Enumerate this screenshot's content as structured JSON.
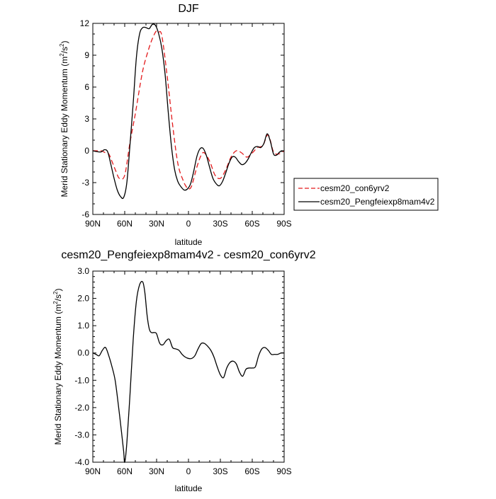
{
  "chart_data": [
    {
      "id": "top",
      "type": "line",
      "title": "DJF",
      "xlabel": "latitude",
      "ylabel": "Merid Stationary Eddy Momentum (m",
      "ylabel_sup": "2",
      "ylabel_mid": "/s",
      "ylabel_sup2": "2",
      "ylabel_end": ")",
      "xlim": [
        90,
        -90
      ],
      "ylim": [
        -6,
        12
      ],
      "xtick_values": [
        90,
        60,
        30,
        0,
        -30,
        -60,
        -90
      ],
      "xtick_labels": [
        "90N",
        "60N",
        "30N",
        "0",
        "30S",
        "60S",
        "90S"
      ],
      "ytick_values": [
        -6,
        -3,
        0,
        3,
        6,
        9,
        12
      ],
      "ytick_labels": [
        "-6",
        "-3",
        "0",
        "3",
        "6",
        "9",
        "12"
      ],
      "series": [
        {
          "name": "cesm20_con6yrv2",
          "color": "#e31a1c",
          "dash": "dashed",
          "x": [
            90,
            85,
            82,
            78,
            75,
            72,
            68,
            65,
            60,
            55,
            50,
            45,
            42,
            38,
            35,
            32,
            30,
            28,
            25,
            20,
            15,
            10,
            5,
            2,
            0,
            -3,
            -8,
            -12,
            -15,
            -20,
            -25,
            -30,
            -35,
            -40,
            -45,
            -50,
            -55,
            -60,
            -65,
            -70,
            -75,
            -80,
            -85,
            -90
          ],
          "y": [
            0,
            0,
            0,
            -0.2,
            -0.3,
            -1.0,
            -2.0,
            -2.6,
            -2.3,
            0.8,
            3.5,
            6.5,
            8.0,
            9.4,
            10.3,
            11.0,
            11.3,
            11.2,
            10.8,
            7.0,
            2.5,
            -1.2,
            -2.8,
            -3.4,
            -3.6,
            -3.3,
            -1.5,
            -0.4,
            -0.2,
            -1.0,
            -2.3,
            -2.6,
            -1.8,
            -0.6,
            0,
            -0.2,
            -0.6,
            -0.2,
            0.3,
            0.5,
            1.5,
            -0.1,
            -0.3,
            0
          ]
        },
        {
          "name": "cesm20_Pengfeiexp8mam4v2",
          "color": "#000000",
          "dash": "solid",
          "x": [
            90,
            85,
            82,
            79,
            76,
            73,
            70,
            67,
            64,
            61,
            58,
            55,
            52,
            49,
            46,
            43,
            40,
            37,
            34,
            31,
            28,
            25,
            22,
            19,
            16,
            13,
            10,
            7,
            4,
            1,
            -2,
            -5,
            -8,
            -11,
            -14,
            -17,
            -20,
            -23,
            -26,
            -29,
            -32,
            -35,
            -38,
            -41,
            -44,
            -47,
            -50,
            -53,
            -56,
            -59,
            -62,
            -65,
            -68,
            -71,
            -74,
            -77,
            -80,
            -83,
            -86,
            -90
          ],
          "y": [
            0,
            -0.1,
            -0.1,
            0.1,
            -0.1,
            -1.3,
            -2.6,
            -3.7,
            -4.3,
            -4.4,
            -3.0,
            0.6,
            4.5,
            8.8,
            11.0,
            11.6,
            11.6,
            11.5,
            11.9,
            11.8,
            11.0,
            9.6,
            7.2,
            3.6,
            0.4,
            -1.8,
            -2.9,
            -3.4,
            -3.7,
            -3.6,
            -3.1,
            -1.9,
            -0.5,
            0.2,
            0.2,
            -0.5,
            -1.6,
            -2.6,
            -3.1,
            -3.3,
            -2.9,
            -2.1,
            -1.2,
            -0.6,
            -0.6,
            -1.0,
            -1.3,
            -1.2,
            -0.8,
            -0.2,
            0.3,
            0.4,
            0.3,
            0.7,
            1.6,
            0.9,
            -0.3,
            -0.4,
            -0.1,
            0
          ]
        }
      ],
      "legend": [
        "cesm20_con6yrv2",
        "cesm20_Pengfeiexp8mam4v2"
      ]
    },
    {
      "id": "bottom",
      "type": "line",
      "title": "cesm20_Pengfeiexp8mam4v2 - cesm20_con6yrv2",
      "xlabel": "latitude",
      "ylabel": "Merid Stationary Eddy Momentum (m",
      "ylabel_sup": "2",
      "ylabel_mid": "/s",
      "ylabel_sup2": "2",
      "ylabel_end": ")",
      "xlim": [
        90,
        -90
      ],
      "ylim": [
        -4,
        3
      ],
      "xtick_values": [
        90,
        60,
        30,
        0,
        -30,
        -60,
        -90
      ],
      "xtick_labels": [
        "90N",
        "60N",
        "30N",
        "0",
        "30S",
        "60S",
        "90S"
      ],
      "ytick_values": [
        -4,
        -3,
        -2,
        -1,
        0,
        1,
        2,
        3
      ],
      "ytick_labels": [
        "-4.0",
        "-3.0",
        "-2.0",
        "-1.0",
        "0.0",
        "1.0",
        "2.0",
        "3.0"
      ],
      "series": [
        {
          "name": "difference",
          "color": "#000000",
          "dash": "solid",
          "x": [
            90,
            87,
            84,
            81,
            78,
            75,
            72,
            69,
            66,
            63,
            61,
            60,
            58,
            55,
            52,
            49,
            46,
            43,
            41,
            39,
            37,
            35,
            32,
            30,
            27,
            24,
            21,
            18,
            15,
            12,
            9,
            6,
            3,
            0,
            -3,
            -6,
            -9,
            -12,
            -15,
            -18,
            -21,
            -24,
            -27,
            -30,
            -33,
            -36,
            -39,
            -42,
            -45,
            -48,
            -51,
            -54,
            -57,
            -60,
            -63,
            -66,
            -69,
            -72,
            -75,
            -78,
            -81,
            -84,
            -87,
            -90
          ],
          "y": [
            0,
            -0.05,
            -0.1,
            0.1,
            0.2,
            -0.1,
            -0.5,
            -1.0,
            -1.9,
            -2.9,
            -3.6,
            -4.0,
            -3.3,
            -1.5,
            0.5,
            1.9,
            2.5,
            2.6,
            2.2,
            1.4,
            0.9,
            0.75,
            0.75,
            0.7,
            0.35,
            0.3,
            0.45,
            0.5,
            0.2,
            0.15,
            0.1,
            -0.05,
            -0.15,
            -0.2,
            -0.2,
            -0.1,
            0.15,
            0.35,
            0.35,
            0.25,
            0.1,
            -0.15,
            -0.5,
            -0.8,
            -0.9,
            -0.55,
            -0.35,
            -0.3,
            -0.4,
            -0.7,
            -0.85,
            -0.6,
            -0.55,
            -0.55,
            -0.5,
            -0.1,
            0.15,
            0.2,
            0.1,
            -0.05,
            -0.05,
            -0.05,
            0,
            0
          ]
        }
      ]
    }
  ]
}
